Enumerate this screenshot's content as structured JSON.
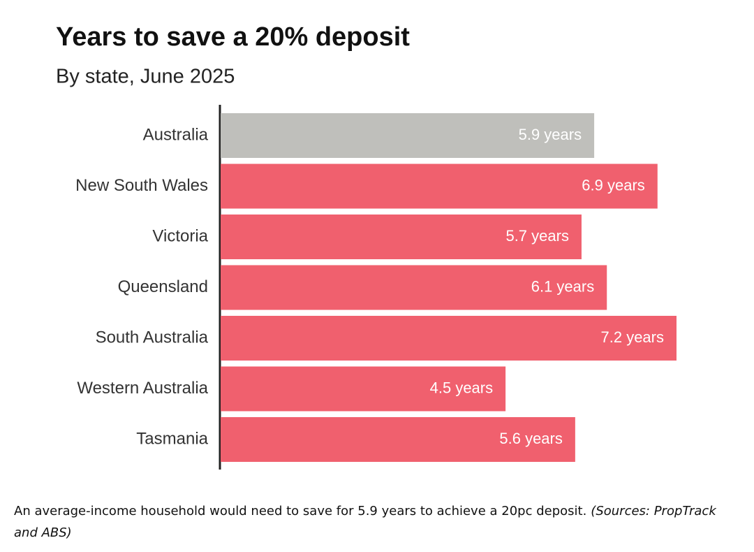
{
  "chart_data": {
    "type": "hbar",
    "title": "Years to save a 20% deposit",
    "subtitle": "By state, June 2025",
    "categories": [
      "Australia",
      "New South Wales",
      "Victoria",
      "Queensland",
      "South Australia",
      "Western Australia",
      "Tasmania"
    ],
    "values": [
      5.9,
      6.9,
      5.7,
      6.1,
      7.2,
      4.5,
      5.6
    ],
    "value_labels": [
      "5.9 years",
      "6.9 years",
      "5.7 years",
      "6.1 years",
      "7.2 years",
      "4.5 years",
      "5.6 years"
    ],
    "colors": [
      "#bfbfbb",
      "#f0606e",
      "#f0606e",
      "#f0606e",
      "#f0606e",
      "#f0606e",
      "#f0606e"
    ],
    "caption": "An average-income household would need to save for 5.9 years to achieve a 20pc deposit.",
    "source": "(Sources: PropTrack and ABS)"
  }
}
